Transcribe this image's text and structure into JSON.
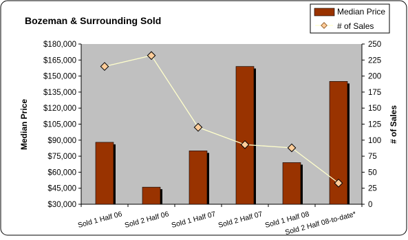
{
  "chart_data": {
    "type": "bar",
    "title": "Bozeman & Surrounding Sold",
    "categories": [
      "Sold 1 Half 06",
      "Sold 2 Half 06",
      "Sold 1 Half 07",
      "Sold 2 Half 07",
      "Sold 1 Half 08",
      "Sold 2 Half 08-to-date*"
    ],
    "series": [
      {
        "name": "Median Price",
        "type": "bar",
        "axis": "left",
        "color": "#993300",
        "values": [
          88000,
          46000,
          80000,
          159000,
          69000,
          145000
        ]
      },
      {
        "name": "# of Sales",
        "type": "line",
        "axis": "right",
        "color": "#FFFFCC",
        "marker_color": "#FFCC99",
        "values": [
          215,
          232,
          120,
          93,
          88,
          33
        ]
      }
    ],
    "ylabel": "Median Price",
    "y2label": "# of Sales",
    "ylim": [
      30000,
      180000
    ],
    "y2lim": [
      0,
      250
    ],
    "yticks": [
      "$30,000",
      "$45,000",
      "$60,000",
      "$75,000",
      "$90,000",
      "$105,000",
      "$120,000",
      "$135,000",
      "$150,000",
      "$165,000",
      "$180,000"
    ],
    "y2ticks": [
      "0",
      "25",
      "50",
      "75",
      "100",
      "125",
      "150",
      "175",
      "200",
      "225",
      "250"
    ],
    "legend_position": "top-right",
    "grid": false
  }
}
